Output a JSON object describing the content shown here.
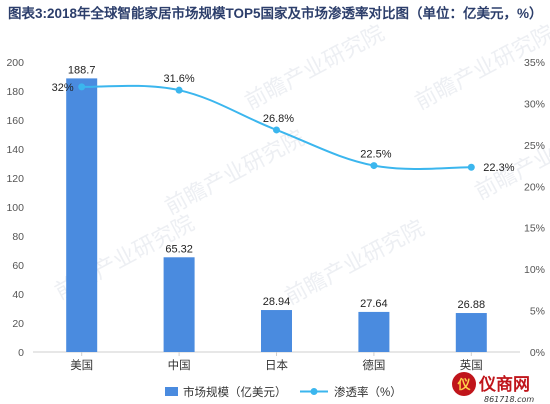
{
  "title": "图表3:2018年全球智能家居市场规模TOP5国家及市场渗透率对比图（单位：亿美元，%）",
  "colors": {
    "bar": "#4a8bdf",
    "line": "#3bb6ee",
    "title": "#2c3e6b"
  },
  "chart_data": {
    "type": "bar",
    "categories": [
      "美国",
      "中国",
      "日本",
      "德国",
      "英国"
    ],
    "series": [
      {
        "name": "市场规模（亿美元）",
        "type": "bar",
        "axis": "left",
        "values": [
          188.7,
          65.32,
          28.94,
          27.64,
          26.88
        ],
        "labels": [
          "188.7",
          "65.32",
          "28.94",
          "27.64",
          "26.88"
        ]
      },
      {
        "name": "渗透率（%）",
        "type": "line",
        "axis": "right",
        "values": [
          32,
          31.6,
          26.8,
          22.5,
          22.3
        ],
        "labels": [
          "32%",
          "31.6%",
          "26.8%",
          "22.5%",
          "22.3%"
        ]
      }
    ],
    "y_left": {
      "min": 0,
      "max": 200,
      "ticks": [
        "0",
        "20",
        "40",
        "60",
        "80",
        "100",
        "120",
        "140",
        "160",
        "180",
        "200"
      ]
    },
    "y_right": {
      "min": 0,
      "max": 35,
      "ticks": [
        "0%",
        "5%",
        "10%",
        "15%",
        "20%",
        "25%",
        "30%",
        "35%"
      ]
    },
    "grid": false,
    "legend": "bottom"
  },
  "watermark": "前瞻产业研究院",
  "logo": {
    "text": "仪商网",
    "url": "861718.com"
  }
}
